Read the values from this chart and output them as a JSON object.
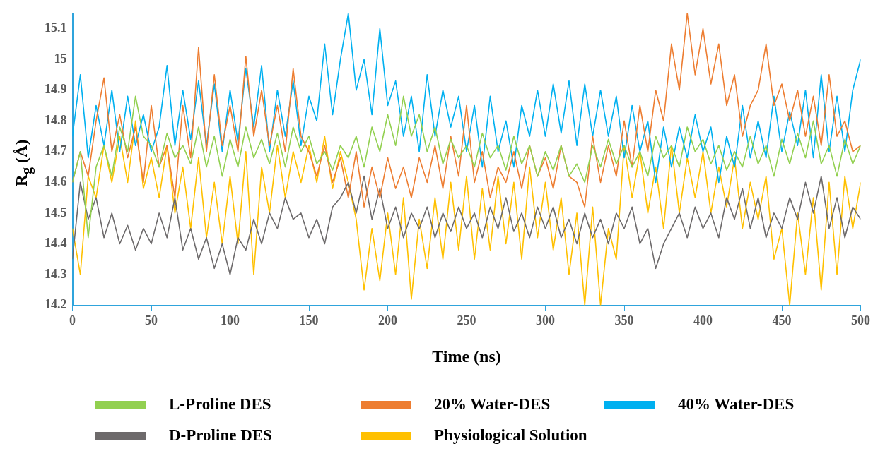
{
  "chart_data": {
    "type": "line",
    "xlabel": "Time (ns)",
    "ylabel": "R$_{g}$ (Å)",
    "legend": "bottom",
    "grid": false,
    "marker": "none",
    "line_style": "solid",
    "xlim": [
      0,
      500
    ],
    "xticks": [
      0,
      50,
      100,
      150,
      200,
      250,
      300,
      350,
      400,
      450,
      500
    ],
    "ylim": [
      14.2,
      15.15
    ],
    "yticks": [
      14.2,
      14.3,
      14.4,
      14.5,
      14.6,
      14.7,
      14.8,
      14.9,
      15,
      15.1
    ],
    "x": [
      0,
      5,
      10,
      15,
      20,
      25,
      30,
      35,
      40,
      45,
      50,
      55,
      60,
      65,
      70,
      75,
      80,
      85,
      90,
      95,
      100,
      105,
      110,
      115,
      120,
      125,
      130,
      135,
      140,
      145,
      150,
      155,
      160,
      165,
      170,
      175,
      180,
      185,
      190,
      195,
      200,
      205,
      210,
      215,
      220,
      225,
      230,
      235,
      240,
      245,
      250,
      255,
      260,
      265,
      270,
      275,
      280,
      285,
      290,
      295,
      300,
      305,
      310,
      315,
      320,
      325,
      330,
      335,
      340,
      345,
      350,
      355,
      360,
      365,
      370,
      375,
      380,
      385,
      390,
      395,
      400,
      405,
      410,
      415,
      420,
      425,
      430,
      435,
      440,
      445,
      450,
      455,
      460,
      465,
      470,
      475,
      480,
      485,
      490,
      495,
      500
    ],
    "series": [
      {
        "name": "L-Proline DES",
        "color": "#92d050",
        "values": [
          14.6,
          14.7,
          14.42,
          14.65,
          14.72,
          14.62,
          14.78,
          14.7,
          14.88,
          14.75,
          14.72,
          14.65,
          14.76,
          14.68,
          14.72,
          14.66,
          14.78,
          14.65,
          14.75,
          14.62,
          14.74,
          14.65,
          14.78,
          14.68,
          14.74,
          14.66,
          14.76,
          14.65,
          14.78,
          14.7,
          14.75,
          14.66,
          14.7,
          14.64,
          14.72,
          14.68,
          14.75,
          14.65,
          14.78,
          14.7,
          14.82,
          14.72,
          14.88,
          14.75,
          14.82,
          14.7,
          14.78,
          14.66,
          14.74,
          14.68,
          14.72,
          14.65,
          14.76,
          14.68,
          14.72,
          14.64,
          14.75,
          14.66,
          14.72,
          14.62,
          14.7,
          14.64,
          14.72,
          14.62,
          14.66,
          14.6,
          14.72,
          14.65,
          14.74,
          14.66,
          14.72,
          14.65,
          14.7,
          14.62,
          14.75,
          14.68,
          14.72,
          14.65,
          14.78,
          14.7,
          14.74,
          14.66,
          14.72,
          14.64,
          14.7,
          14.65,
          14.75,
          14.66,
          14.72,
          14.62,
          14.74,
          14.66,
          14.76,
          14.68,
          14.8,
          14.66,
          14.72,
          14.62,
          14.74,
          14.66,
          14.72
        ]
      },
      {
        "name": "20% Water-DES",
        "color": "#ed7d31",
        "values": [
          14.6,
          14.7,
          14.62,
          14.8,
          14.94,
          14.7,
          14.82,
          14.68,
          14.78,
          14.6,
          14.85,
          14.65,
          14.72,
          14.55,
          14.85,
          14.68,
          15.04,
          14.7,
          14.95,
          14.72,
          14.85,
          14.7,
          15.01,
          14.75,
          14.9,
          14.72,
          14.85,
          14.7,
          14.97,
          14.75,
          14.7,
          14.62,
          14.72,
          14.6,
          14.68,
          14.55,
          14.7,
          14.52,
          14.65,
          14.55,
          14.68,
          14.58,
          14.65,
          14.55,
          14.68,
          14.6,
          14.72,
          14.58,
          14.75,
          14.62,
          14.85,
          14.6,
          14.7,
          14.55,
          14.65,
          14.6,
          14.7,
          14.58,
          14.72,
          14.62,
          14.68,
          14.58,
          14.72,
          14.62,
          14.6,
          14.52,
          14.75,
          14.6,
          14.72,
          14.62,
          14.8,
          14.65,
          14.85,
          14.7,
          14.9,
          14.8,
          15.05,
          14.9,
          15.15,
          14.95,
          15.1,
          14.92,
          15.05,
          14.85,
          14.95,
          14.75,
          14.85,
          14.9,
          15.05,
          14.85,
          14.92,
          14.8,
          14.9,
          14.75,
          14.88,
          14.72,
          14.95,
          14.75,
          14.8,
          14.7,
          14.72
        ]
      },
      {
        "name": "40% Water-DES",
        "color": "#00b0f0",
        "values": [
          14.75,
          14.95,
          14.68,
          14.85,
          14.72,
          14.9,
          14.7,
          14.88,
          14.72,
          14.82,
          14.7,
          14.78,
          14.98,
          14.72,
          14.9,
          14.74,
          14.93,
          14.72,
          14.92,
          14.7,
          14.9,
          14.73,
          14.97,
          14.78,
          14.98,
          14.7,
          14.9,
          14.75,
          14.93,
          14.72,
          14.88,
          14.8,
          15.05,
          14.82,
          15,
          15.15,
          14.9,
          15,
          14.82,
          15.1,
          14.85,
          14.93,
          14.75,
          14.88,
          14.7,
          14.95,
          14.75,
          14.9,
          14.78,
          14.88,
          14.7,
          14.85,
          14.65,
          14.88,
          14.7,
          14.8,
          14.65,
          14.85,
          14.75,
          14.9,
          14.75,
          14.92,
          14.76,
          14.93,
          14.72,
          14.92,
          14.75,
          14.9,
          14.75,
          14.88,
          14.68,
          14.85,
          14.7,
          14.8,
          14.6,
          14.78,
          14.65,
          14.78,
          14.68,
          14.82,
          14.7,
          14.78,
          14.6,
          14.75,
          14.65,
          14.85,
          14.68,
          14.8,
          14.68,
          14.88,
          14.7,
          14.83,
          14.72,
          14.9,
          14.68,
          14.95,
          14.7,
          14.88,
          14.7,
          14.9,
          15
        ]
      },
      {
        "name": "D-Proline DES",
        "color": "#6d6a6b",
        "values": [
          14.35,
          14.6,
          14.48,
          14.55,
          14.42,
          14.5,
          14.4,
          14.46,
          14.38,
          14.45,
          14.4,
          14.5,
          14.42,
          14.55,
          14.38,
          14.45,
          14.35,
          14.42,
          14.32,
          14.4,
          14.3,
          14.42,
          14.38,
          14.48,
          14.4,
          14.5,
          14.45,
          14.55,
          14.48,
          14.5,
          14.42,
          14.48,
          14.4,
          14.52,
          14.55,
          14.6,
          14.5,
          14.62,
          14.48,
          14.58,
          14.45,
          14.52,
          14.42,
          14.5,
          14.45,
          14.52,
          14.42,
          14.5,
          14.44,
          14.52,
          14.45,
          14.5,
          14.42,
          14.52,
          14.45,
          14.55,
          14.44,
          14.5,
          14.42,
          14.52,
          14.45,
          14.52,
          14.42,
          14.48,
          14.4,
          14.5,
          14.42,
          14.48,
          14.4,
          14.5,
          14.45,
          14.52,
          14.4,
          14.45,
          14.32,
          14.4,
          14.45,
          14.5,
          14.42,
          14.52,
          14.45,
          14.5,
          14.42,
          14.55,
          14.48,
          14.58,
          14.45,
          14.55,
          14.42,
          14.5,
          14.45,
          14.55,
          14.48,
          14.6,
          14.5,
          14.62,
          14.45,
          14.55,
          14.42,
          14.52,
          14.48
        ]
      },
      {
        "name": "Physiological Solution",
        "color": "#ffc000",
        "values": [
          14.45,
          14.3,
          14.62,
          14.55,
          14.72,
          14.6,
          14.75,
          14.6,
          14.8,
          14.58,
          14.68,
          14.55,
          14.72,
          14.5,
          14.65,
          14.45,
          14.68,
          14.42,
          14.6,
          14.4,
          14.62,
          14.4,
          14.7,
          14.3,
          14.65,
          14.5,
          14.72,
          14.55,
          14.7,
          14.6,
          14.72,
          14.6,
          14.75,
          14.58,
          14.7,
          14.6,
          14.48,
          14.25,
          14.45,
          14.28,
          14.5,
          14.3,
          14.55,
          14.22,
          14.48,
          14.32,
          14.55,
          14.35,
          14.6,
          14.38,
          14.62,
          14.35,
          14.58,
          14.38,
          14.62,
          14.4,
          14.6,
          14.35,
          14.65,
          14.42,
          14.6,
          14.38,
          14.55,
          14.3,
          14.5,
          14.2,
          14.52,
          14.2,
          14.45,
          14.35,
          14.72,
          14.55,
          14.7,
          14.5,
          14.65,
          14.45,
          14.72,
          14.5,
          14.68,
          14.55,
          14.7,
          14.5,
          14.65,
          14.52,
          14.68,
          14.45,
          14.6,
          14.48,
          14.62,
          14.35,
          14.45,
          14.2,
          14.5,
          14.3,
          14.55,
          14.25,
          14.6,
          14.3,
          14.62,
          14.45,
          14.6
        ]
      }
    ]
  }
}
